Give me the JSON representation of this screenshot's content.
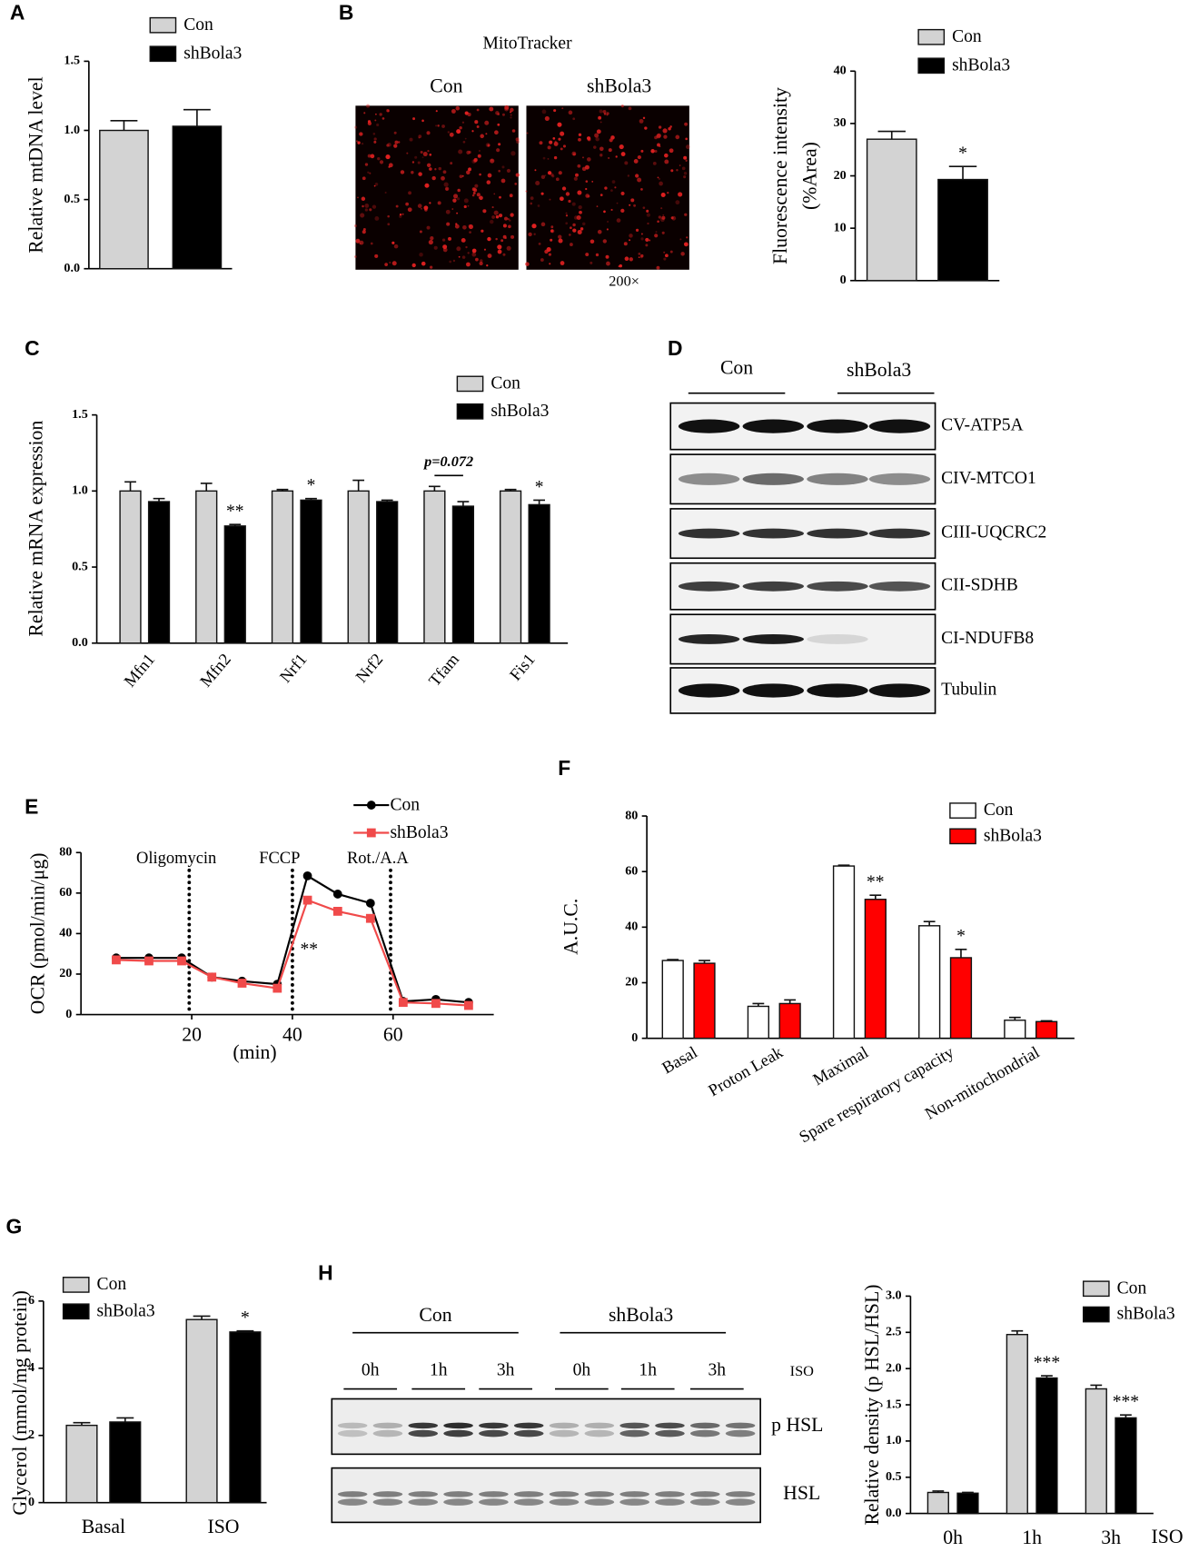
{
  "panel_labels": [
    "A",
    "B",
    "C",
    "D",
    "E",
    "F",
    "G",
    "H"
  ],
  "mitotracker": {
    "title": "MitoTracker",
    "labels": [
      "Con",
      "shBola3"
    ],
    "magnification": "200×"
  },
  "blot_d": {
    "groups": [
      "Con",
      "shBola3"
    ],
    "bands": [
      "CV-ATP5A",
      "CIV-MTCO1",
      "CIII-UQCRC2",
      "CII-SDHB",
      "CI-NDUFB8",
      "Tubulin"
    ]
  },
  "blot_h": {
    "groups": [
      "Con",
      "shBola3"
    ],
    "times": [
      "0h",
      "1h",
      "3h",
      "0h",
      "1h",
      "3h"
    ],
    "treatment": "ISO",
    "bands": [
      "p HSL",
      "HSL"
    ]
  },
  "chart_data": [
    {
      "type": "bar",
      "ylabel": "Relative mtDNA level",
      "categories": [
        null
      ],
      "series": [
        {
          "name": "Con",
          "color": "#d3d3d3",
          "values": [
            1.0
          ],
          "errors": [
            0.07
          ]
        },
        {
          "name": "shBola3",
          "color": "#000000",
          "values": [
            1.03
          ],
          "errors": [
            0.12
          ]
        }
      ],
      "ylim": [
        0,
        1.5
      ],
      "yticks": [
        {
          "value": 0,
          "label": "0.0"
        },
        0.5,
        {
          "value": 1,
          "label": "1.0"
        },
        1.5
      ]
    },
    {
      "type": "bar",
      "ylabel": [
        "Fluorescence intensity",
        "(%Area)"
      ],
      "categories": [
        null
      ],
      "series": [
        {
          "name": "Con",
          "color": "#d3d3d3",
          "values": [
            27
          ],
          "errors": [
            1.5
          ]
        },
        {
          "name": "shBola3",
          "color": "#000000",
          "values": [
            19.3
          ],
          "errors": [
            2.5
          ]
        }
      ],
      "ylim": [
        0,
        40
      ],
      "yticks": [
        0,
        10,
        20,
        30,
        40
      ],
      "annotations": [
        "*"
      ]
    },
    {
      "type": "bar",
      "ylabel": "Relative mRNA expression",
      "categories": [
        "Mfn1",
        "Mfn2",
        "Nrf1",
        "Nrf2",
        "Tfam",
        "Fis1"
      ],
      "series": [
        {
          "name": "Con",
          "color": "#d3d3d3",
          "values": [
            1.0,
            1.0,
            1.0,
            1.0,
            1.0,
            1.0
          ],
          "errors": [
            0.06,
            0.05,
            0.01,
            0.07,
            0.03,
            0.01
          ]
        },
        {
          "name": "shBola3",
          "color": "#000000",
          "values": [
            0.93,
            0.77,
            0.94,
            0.93,
            0.9,
            0.91
          ],
          "errors": [
            0.02,
            0.01,
            0.01,
            0.01,
            0.03,
            0.03
          ]
        }
      ],
      "ylim": [
        0,
        1.5
      ],
      "yticks": [
        {
          "value": 0,
          "label": "0.0"
        },
        0.5,
        {
          "value": 1,
          "label": "1.0"
        },
        1.5
      ],
      "annotations": [
        "**",
        "*",
        "p=0.072",
        "*"
      ]
    },
    {
      "type": "line",
      "ylabel": "OCR (pmol/min/μg)",
      "xlabel": "(min)",
      "x": [
        5,
        11.5,
        18,
        24,
        30,
        37,
        43,
        49,
        55.5,
        62,
        68.5,
        75
      ],
      "series": [
        {
          "name": "Con",
          "color": "#000000",
          "marker": "circle",
          "values": [
            28,
            28,
            28,
            18.5,
            16.5,
            15,
            68.5,
            59.5,
            55,
            6.5,
            7.5,
            6
          ]
        },
        {
          "name": "shBola3",
          "color": "#f04a4a",
          "marker": "square",
          "values": [
            27,
            26.5,
            26.5,
            18.5,
            15.5,
            13,
            56.5,
            51,
            47.5,
            6,
            5.5,
            4.5
          ]
        }
      ],
      "xlim": [
        -2,
        80
      ],
      "xticks": [
        20,
        40,
        60
      ],
      "ylim": [
        0,
        80
      ],
      "yticks": [
        0,
        20,
        40,
        60,
        80
      ],
      "injections": [
        {
          "x": 19.5,
          "label": "Oligomycin"
        },
        {
          "x": 40,
          "label": "FCCP"
        },
        {
          "x": 59.5,
          "label": "Rot./A.A"
        }
      ],
      "annotations": [
        "**"
      ]
    },
    {
      "type": "bar",
      "ylabel": "A.U.C.",
      "categories": [
        "Basal",
        "Proton Leak",
        "Maximal",
        "Spare respiratory capacity",
        "Non-mitochondrial"
      ],
      "series": [
        {
          "name": "Con",
          "color": "#ffffff",
          "values": [
            28,
            11.5,
            62,
            40.5,
            6.5
          ],
          "errors": [
            0.3,
            1,
            0.3,
            1.5,
            1
          ]
        },
        {
          "name": "shBola3",
          "color": "#ff0000",
          "values": [
            27,
            12.5,
            50,
            29,
            6
          ],
          "errors": [
            1,
            1.3,
            1.5,
            3,
            0.3
          ]
        }
      ],
      "ylim": [
        0,
        80
      ],
      "yticks": [
        0,
        20,
        40,
        60,
        80
      ],
      "annotations": [
        "**",
        "*"
      ]
    },
    {
      "type": "bar",
      "ylabel": "Glycerol (mmol/mg protein)",
      "categories": [
        "Basal",
        "ISO"
      ],
      "series": [
        {
          "name": "Con",
          "color": "#d3d3d3",
          "values": [
            2.3,
            5.45
          ],
          "errors": [
            0.08,
            0.1
          ]
        },
        {
          "name": "shBola3",
          "color": "#000000",
          "values": [
            2.4,
            5.08
          ],
          "errors": [
            0.12,
            0.03
          ]
        }
      ],
      "ylim": [
        0,
        6
      ],
      "yticks": [
        0,
        2,
        4,
        6
      ],
      "annotations": [
        "*"
      ]
    },
    {
      "type": "bar",
      "ylabel": "Relative density (p HSL/HSL)",
      "xlabel": "ISO",
      "categories": [
        "0h",
        "1h",
        "3h"
      ],
      "series": [
        {
          "name": "Con",
          "color": "#d3d3d3",
          "values": [
            0.29,
            2.47,
            1.72
          ],
          "errors": [
            0.02,
            0.05,
            0.05
          ]
        },
        {
          "name": "shBola3",
          "color": "#000000",
          "values": [
            0.28,
            1.87,
            1.32
          ],
          "errors": [
            0.01,
            0.03,
            0.04
          ]
        }
      ],
      "ylim": [
        0,
        3
      ],
      "yticks": [
        {
          "value": 0,
          "label": "0.0"
        },
        0.5,
        {
          "value": 1,
          "label": "1.0"
        },
        1.5,
        {
          "value": 2,
          "label": "2.0"
        },
        2.5,
        {
          "value": 3,
          "label": "3.0"
        }
      ],
      "annotations": [
        "***",
        "***"
      ]
    }
  ]
}
